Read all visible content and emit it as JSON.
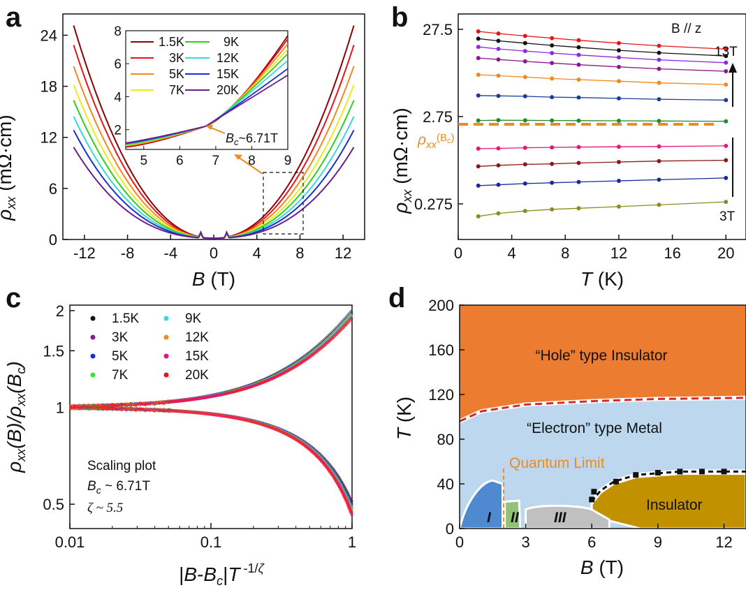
{
  "panel_letters": [
    "a",
    "b",
    "c",
    "d"
  ],
  "colors": {
    "1.5K": "#8b0000",
    "3K": "#e8141a",
    "5K": "#f08a1e",
    "7K": "#f0e81e",
    "9K": "#2fcf1e",
    "12K": "#38d8d8",
    "15K": "#1a2fcf",
    "20K": "#6a1e8c",
    "orange": "#f08a1e",
    "hole": "#ec7c30",
    "electron": "#bcd7ee",
    "insulator": "#c19100",
    "phaseI": "#4f8ad1",
    "phaseII": "#92c277",
    "phaseIII": "#c0c0c0"
  },
  "chart_data": [
    {
      "id": "a",
      "type": "line",
      "xlabel_italic": "B",
      "xlabel_unit": " (T)",
      "ylabel": "ρxx (mΩ·cm)",
      "xlim": [
        -14,
        14
      ],
      "ylim": [
        0,
        26.5
      ],
      "xticks": [
        "-12",
        "-8",
        "-4",
        "0",
        "4",
        "8",
        "12"
      ],
      "yticks": [
        "0",
        "6",
        "12",
        "18",
        "24"
      ],
      "series": [
        {
          "name": "1.5K",
          "y_at_13": 25.0
        },
        {
          "name": "3K",
          "y_at_13": 22.7
        },
        {
          "name": "5K",
          "y_at_13": 20.2
        },
        {
          "name": "7K",
          "y_at_13": 18.0
        },
        {
          "name": "9K",
          "y_at_13": 16.2
        },
        {
          "name": "12K",
          "y_at_13": 14.3
        },
        {
          "name": "15K",
          "y_at_13": 12.7
        },
        {
          "name": "20K",
          "y_at_13": 10.7
        }
      ],
      "inset": {
        "xlim": [
          4.5,
          9
        ],
        "ylim": [
          0.8,
          8
        ],
        "xticks": [
          "5",
          "6",
          "7",
          "8",
          "9"
        ],
        "yticks": [
          "2",
          "4",
          "6",
          "8"
        ],
        "crossing": {
          "x": 6.71,
          "y": 2.2
        },
        "annotation_prefix": "B",
        "annotation_sub": "c",
        "annotation_suffix": "~6.71T",
        "y_at_9": [
          7.7,
          7.5,
          7.2,
          6.9,
          6.6,
          6.2,
          5.7,
          5.3
        ]
      },
      "legend_left": [
        "1.5K",
        "3K",
        "5K",
        "7K"
      ],
      "legend_right": [
        "9K",
        "12K",
        "15K",
        "20K"
      ]
    },
    {
      "id": "b",
      "type": "line",
      "ylabel": "ρxx (mΩ·cm)",
      "xlabel_italic": "T",
      "xlabel_unit": " (K)",
      "xlim": [
        0,
        21.5
      ],
      "x": [
        1.5,
        3,
        5,
        7,
        9,
        12,
        15,
        20
      ],
      "xticks": [
        "0",
        "4",
        "8",
        "12",
        "16",
        "20"
      ],
      "yticks": [
        "0.275",
        "2.75",
        "27.5"
      ],
      "scale": "log",
      "field_label": "B // z",
      "top_label": "13T",
      "bottom_label": "3T",
      "dashed_label": "ρxx(Bc)",
      "series": [
        {
          "color": "#e8141a",
          "y": [
            26.0,
            24.6,
            23.1,
            21.8,
            20.6,
            19.1,
            17.8,
            16.3
          ]
        },
        {
          "color": "#111111",
          "y": [
            21.5,
            20.3,
            19.1,
            18.0,
            17.1,
            15.8,
            14.8,
            13.6
          ]
        },
        {
          "color": "#8a2be2",
          "y": [
            17.3,
            16.4,
            15.5,
            14.7,
            14.0,
            13.1,
            12.3,
            11.4
          ]
        },
        {
          "color": "#8b1a8b",
          "y": [
            12.9,
            12.4,
            11.8,
            11.3,
            10.8,
            10.2,
            9.7,
            9.1
          ]
        },
        {
          "color": "#f08a1e",
          "y": [
            8.3,
            8.1,
            7.8,
            7.5,
            7.3,
            7.0,
            6.7,
            6.4
          ]
        },
        {
          "color": "#1a3d9c",
          "y": [
            4.8,
            4.75,
            4.7,
            4.6,
            4.55,
            4.45,
            4.35,
            4.25
          ]
        },
        {
          "color": "#1e8c2a",
          "y": [
            2.48,
            2.5,
            2.49,
            2.48,
            2.47,
            2.46,
            2.45,
            2.43
          ]
        },
        {
          "color": "#e8147a",
          "y": [
            1.18,
            1.19,
            1.21,
            1.22,
            1.23,
            1.24,
            1.25,
            1.27
          ]
        },
        {
          "color": "#8b1a1a",
          "y": [
            0.74,
            0.76,
            0.78,
            0.79,
            0.81,
            0.83,
            0.85,
            0.87
          ]
        },
        {
          "color": "#1a2a9c",
          "y": [
            0.445,
            0.455,
            0.47,
            0.48,
            0.49,
            0.505,
            0.52,
            0.545
          ]
        },
        {
          "color": "#8c8c1e",
          "y": [
            0.198,
            0.214,
            0.228,
            0.238,
            0.245,
            0.256,
            0.268,
            0.29
          ]
        }
      ],
      "dashed_y": 2.0
    },
    {
      "id": "c",
      "type": "scatter",
      "scale": "log-log",
      "xlim": [
        0.01,
        1
      ],
      "ylim": [
        0.42,
        2.08
      ],
      "xticks": [
        "0.01",
        "0.1",
        "1"
      ],
      "yticks": [
        "0.5",
        "1",
        "1.5",
        "2"
      ],
      "xlabel": "|B-Bc|T^(-1/ζ)",
      "ylabel": "ρxx(B)/ρxx(Bc)",
      "legend_left": [
        "1.5K",
        "3K",
        "5K",
        "7K"
      ],
      "legend_right": [
        "9K",
        "12K",
        "15K",
        "20K"
      ],
      "legend_colors": [
        "#111111",
        "#8b1a8b",
        "#1a2fcf",
        "#2fe82f",
        "#38d8e8",
        "#f08a1e",
        "#e8147a",
        "#e8141a"
      ],
      "annotation_line1": "Scaling plot",
      "annotation_bc_label": "B",
      "annotation_bc_sub": "c",
      "annotation_bc_value": " ~ 6.71T",
      "annotation_zeta": "ζ ~ 5.5",
      "upper_end": 2.0,
      "lower_end": 0.46
    },
    {
      "id": "d",
      "type": "area",
      "xlim": [
        0,
        13
      ],
      "ylim": [
        0,
        200
      ],
      "xticks": [
        "0",
        "3",
        "6",
        "9",
        "12"
      ],
      "yticks": [
        "0",
        "40",
        "80",
        "120",
        "160",
        "200"
      ],
      "xlabel_italic": "B",
      "xlabel_unit": " (T)",
      "ylabel_italic": "T",
      "ylabel_unit": " (K)",
      "labels": {
        "hole": "“Hole” type Insulator",
        "electron": "“Electron” type Metal",
        "quantum_limit": "Quantum Limit",
        "insulator": "Insulator",
        "I": "I",
        "II": "II",
        "III": "III"
      },
      "quantum_limit_B": 2.0,
      "boundary_upper": [
        [
          0,
          96
        ],
        [
          1,
          105
        ],
        [
          3,
          111
        ],
        [
          6,
          114
        ],
        [
          9,
          116
        ],
        [
          13,
          117
        ]
      ],
      "boundary_insulator": [
        [
          6,
          22
        ],
        [
          6.4,
          32
        ],
        [
          7,
          40
        ],
        [
          8,
          46
        ],
        [
          10,
          49
        ],
        [
          13,
          49
        ]
      ]
    }
  ]
}
